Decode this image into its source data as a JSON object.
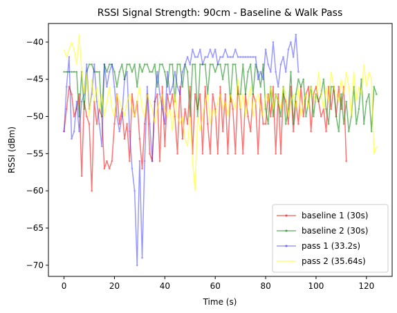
{
  "chart_data": {
    "type": "line",
    "title": "RSSI Signal Strength: 90cm - Baseline & Walk Pass",
    "xlabel": "Time (s)",
    "ylabel": "RSSI (dBm)",
    "xlim": [
      -6.2,
      130.2
    ],
    "ylim": [
      -71.5,
      -37.5
    ],
    "xticks": [
      0,
      20,
      40,
      60,
      80,
      100,
      120
    ],
    "yticks": [
      -40,
      -45,
      -50,
      -55,
      -60,
      -65,
      -70
    ],
    "grid": false,
    "legend_position": "lower-right",
    "series": [
      {
        "name": "baseline 1 (30s)",
        "color": "#ff0000",
        "alpha": 0.55,
        "marker": true,
        "x": [
          0,
          1,
          2,
          3,
          4,
          5,
          6,
          7,
          8,
          9,
          10,
          11,
          12,
          13,
          14,
          15,
          16,
          17,
          18,
          19,
          20,
          21,
          22,
          23,
          24,
          25,
          26,
          27,
          28,
          29,
          30,
          31,
          32,
          33,
          34,
          35,
          36,
          37,
          38,
          39,
          40,
          41,
          42,
          43,
          44,
          45,
          46,
          47,
          48,
          49,
          50,
          51,
          52,
          53,
          54,
          55,
          56,
          57,
          58,
          59,
          60,
          61,
          62,
          63,
          64,
          65,
          66,
          67,
          68,
          69,
          70,
          71,
          72,
          73,
          74,
          75,
          76,
          77,
          78,
          79,
          80,
          81,
          82,
          83,
          84,
          85,
          86,
          87,
          88,
          89,
          90,
          91,
          92,
          93,
          94,
          95,
          96,
          97,
          98,
          99,
          100,
          101,
          102,
          103,
          104,
          105,
          106,
          107,
          108,
          109,
          110,
          111,
          112
        ],
        "y": [
          -52,
          -49,
          -46,
          -47,
          -50,
          -49,
          -47,
          -58,
          -48,
          -50,
          -51,
          -60,
          -48,
          -51,
          -49,
          -50,
          -57,
          -56,
          -57,
          -56,
          -51,
          -47,
          -51,
          -49,
          -53,
          -51,
          -56,
          -47,
          -50,
          -48,
          -53,
          -57,
          -51,
          -47,
          -55,
          -56,
          -48,
          -47,
          -56,
          -46,
          -54,
          -47,
          -49,
          -47,
          -50,
          -55,
          -46,
          -53,
          -49,
          -51,
          -46,
          -55,
          -47,
          -49,
          -47,
          -55,
          -46,
          -51,
          -55,
          -47,
          -49,
          -55,
          -46,
          -52,
          -47,
          -55,
          -47,
          -49,
          -55,
          -46,
          -49,
          -55,
          -47,
          -50,
          -52,
          -47,
          -48,
          -55,
          -47,
          -51,
          -51,
          -47,
          -50,
          -46,
          -55,
          -47,
          -55,
          -47,
          -48,
          -51,
          -46,
          -52,
          -48,
          -51,
          -46,
          -50,
          -47,
          -46,
          -52,
          -47,
          -46,
          -48,
          -50,
          -49,
          -52,
          -46,
          -49,
          -46,
          -50,
          -46,
          -49,
          -46,
          -56
        ]
      },
      {
        "name": "baseline 2 (30s)",
        "color": "#008000",
        "alpha": 0.55,
        "marker": true,
        "x": [
          0,
          1,
          2,
          3,
          4,
          5,
          6,
          7,
          8,
          9,
          10,
          11,
          12,
          13,
          14,
          15,
          16,
          17,
          18,
          19,
          20,
          21,
          22,
          23,
          24,
          25,
          26,
          27,
          28,
          29,
          30,
          31,
          32,
          33,
          34,
          35,
          36,
          37,
          38,
          39,
          40,
          41,
          42,
          43,
          44,
          45,
          46,
          47,
          48,
          49,
          50,
          51,
          52,
          53,
          54,
          55,
          56,
          57,
          58,
          59,
          60,
          61,
          62,
          63,
          64,
          65,
          66,
          67,
          68,
          69,
          70,
          71,
          72,
          73,
          74,
          75,
          76,
          77,
          78,
          79,
          80,
          81,
          82,
          83,
          84,
          85,
          86,
          87,
          88,
          89,
          90,
          91,
          92,
          93,
          94,
          95,
          96,
          97,
          98,
          99,
          100,
          101,
          102,
          103,
          104,
          105,
          106,
          107,
          108,
          109,
          110,
          111,
          112,
          113,
          114,
          115,
          116,
          117,
          118,
          119,
          120,
          121,
          122,
          123,
          124
        ],
        "y": [
          -44,
          -44,
          -44,
          -44,
          -44,
          -44,
          -50,
          -44,
          -49,
          -44,
          -43,
          -43,
          -44,
          -44,
          -44,
          -50,
          -43,
          -44,
          -43,
          -43,
          -44,
          -46,
          -44,
          -43,
          -45,
          -43,
          -43,
          -44,
          -43,
          -46,
          -43,
          -44,
          -43,
          -43,
          -44,
          -44,
          -43,
          -46,
          -43,
          -43,
          -44,
          -46,
          -43,
          -43,
          -48,
          -43,
          -43,
          -46,
          -43,
          -44,
          -50,
          -43,
          -43,
          -50,
          -43,
          -43,
          -43,
          -47,
          -43,
          -43,
          -44,
          -43,
          -43,
          -45,
          -43,
          -43,
          -48,
          -43,
          -43,
          -47,
          -47,
          -43,
          -47,
          -44,
          -43,
          -47,
          -43,
          -44,
          -46,
          -43,
          -49,
          -51,
          -46,
          -50,
          -47,
          -48,
          -50,
          -46,
          -51,
          -49,
          -44,
          -51,
          -47,
          -45,
          -46,
          -45,
          -50,
          -48,
          -46,
          -50,
          -47,
          -48,
          -47,
          -45,
          -49,
          -51,
          -46,
          -46,
          -50,
          -52,
          -47,
          -51,
          -48,
          -52,
          -50,
          -46,
          -51,
          -49,
          -45,
          -51,
          -48,
          -47,
          -52,
          -46,
          -47
        ]
      },
      {
        "name": "pass 1 (33.2s)",
        "color": "#0000ff",
        "alpha": 0.4,
        "marker": true,
        "x": [
          0,
          1,
          2,
          3,
          4,
          5,
          6,
          7,
          8,
          9,
          10,
          11,
          12,
          13,
          14,
          15,
          16,
          17,
          18,
          19,
          20,
          21,
          22,
          23,
          24,
          25,
          26,
          27,
          28,
          29,
          30,
          31,
          32,
          33,
          34,
          35,
          36,
          37,
          38,
          39,
          40,
          41,
          42,
          43,
          44,
          45,
          46,
          47,
          48,
          49,
          50,
          51,
          52,
          53,
          54,
          55,
          56,
          57,
          58,
          59,
          60,
          61,
          62,
          63,
          64,
          65,
          66,
          67,
          68,
          69,
          70,
          71,
          72,
          73,
          74,
          75,
          76,
          77,
          78,
          79,
          80,
          81,
          82,
          83,
          84,
          85,
          86,
          87,
          88,
          89,
          90,
          91,
          92,
          93
        ],
        "y": [
          -52,
          -46,
          -42,
          -53,
          -52,
          -48,
          -52,
          -48,
          -47,
          -43,
          -49,
          -47,
          -43,
          -48,
          -51,
          -54,
          -43,
          -46,
          -44,
          -43,
          -46,
          -50,
          -52,
          -50,
          -45,
          -44,
          -52,
          -57,
          -60,
          -70,
          -56,
          -69,
          -56,
          -46,
          -51,
          -56,
          -48,
          -44,
          -47,
          -49,
          -51,
          -44,
          -47,
          -46,
          -44,
          -46,
          -47,
          -44,
          -43,
          -42,
          -43,
          -41,
          -42,
          -42,
          -41,
          -43,
          -42,
          -42,
          -41,
          -42,
          -41,
          -43,
          -42,
          -42,
          -41,
          -42,
          -42,
          -42,
          -41,
          -42,
          -42,
          -42,
          -42,
          -42,
          -42,
          -42,
          -42,
          -45,
          -44,
          -45,
          -41,
          -43,
          -44,
          -40,
          -44,
          -46,
          -43,
          -42,
          -44,
          -41,
          -40,
          -42,
          -39,
          -44
        ]
      },
      {
        "name": "pass 2 (35.64s)",
        "color": "#ffff00",
        "alpha": 0.55,
        "marker": false,
        "x": [
          0,
          1,
          2,
          3,
          4,
          5,
          6,
          7,
          8,
          9,
          10,
          11,
          12,
          13,
          14,
          15,
          16,
          17,
          18,
          19,
          20,
          21,
          22,
          23,
          24,
          25,
          26,
          27,
          28,
          29,
          30,
          31,
          32,
          33,
          34,
          35,
          36,
          37,
          38,
          39,
          40,
          41,
          42,
          43,
          44,
          45,
          46,
          47,
          48,
          49,
          50,
          51,
          52,
          53,
          54,
          55,
          56,
          57,
          58,
          59,
          60,
          61,
          62,
          63,
          64,
          65,
          66,
          67,
          68,
          69,
          70,
          71,
          72,
          73,
          74,
          75,
          76,
          77,
          78,
          79,
          80,
          81,
          82,
          83,
          84,
          85,
          86,
          87,
          88,
          89,
          90,
          91,
          92,
          93,
          94,
          95,
          96,
          97,
          98,
          99,
          100,
          101,
          102,
          103,
          104,
          105,
          106,
          107,
          108,
          109,
          110,
          111,
          112,
          113,
          114,
          115,
          116,
          117,
          118,
          119,
          120,
          121,
          122,
          123,
          124
        ],
        "y": [
          -41,
          -42,
          -41,
          -40,
          -41,
          -43,
          -39,
          -44,
          -47,
          -44,
          -50,
          -45,
          -48,
          -46,
          -49,
          -47,
          -50,
          -48,
          -46,
          -49,
          -50,
          -47,
          -48,
          -49,
          -50,
          -48,
          -47,
          -49,
          -50,
          -48,
          -46,
          -49,
          -50,
          -47,
          -48,
          -49,
          -51,
          -49,
          -48,
          -47,
          -49,
          -50,
          -49,
          -52,
          -47,
          -50,
          -51,
          -50,
          -53,
          -54,
          -50,
          -56,
          -60,
          -50,
          -52,
          -50,
          -48,
          -47,
          -51,
          -49,
          -50,
          -48,
          -47,
          -49,
          -48,
          -50,
          -47,
          -48,
          -49,
          -45,
          -49,
          -47,
          -50,
          -48,
          -46,
          -50,
          -48,
          -47,
          -49,
          -50,
          -47,
          -48,
          -46,
          -49,
          -47,
          -48,
          -49,
          -46,
          -47,
          -50,
          -48,
          -47,
          -49,
          -46,
          -50,
          -48,
          -47,
          -49,
          -46,
          -47,
          -48,
          -44,
          -47,
          -49,
          -46,
          -48,
          -44,
          -46,
          -47,
          -48,
          -45,
          -47,
          -44,
          -46,
          -50,
          -44,
          -48,
          -46,
          -47,
          -43,
          -46,
          -44,
          -45,
          -55,
          -54
        ]
      }
    ]
  }
}
